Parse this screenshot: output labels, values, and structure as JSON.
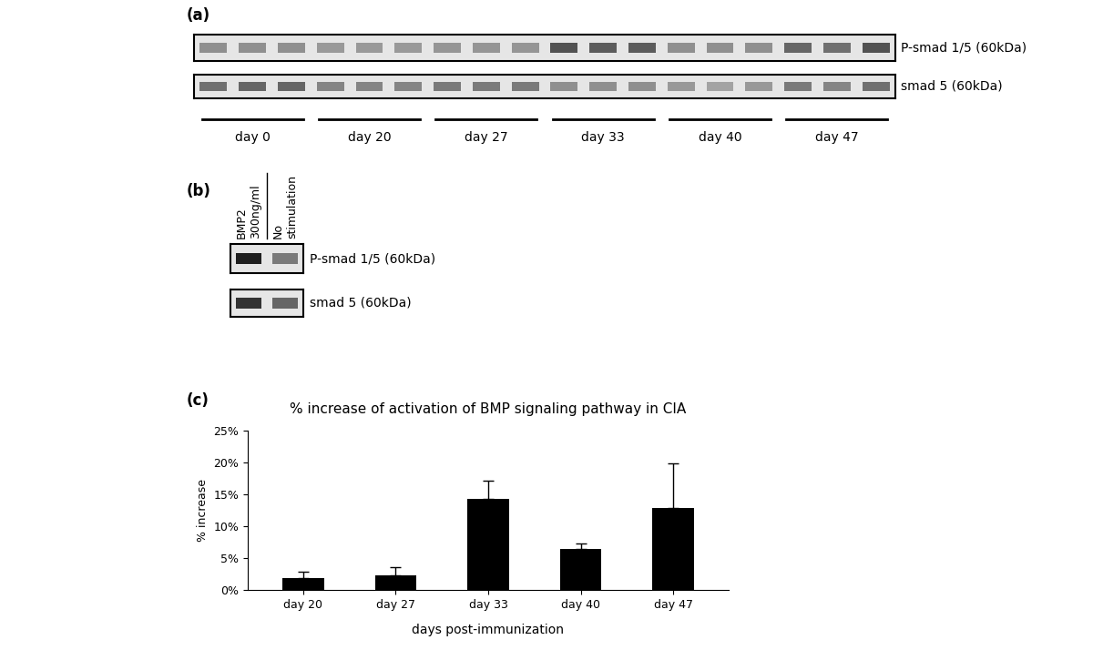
{
  "panel_labels": [
    "(a)",
    "(b)",
    "(c)"
  ],
  "blots": {
    "a": {
      "groups": [
        "day 0",
        "day 20",
        "day 27",
        "day 33",
        "day 40",
        "day 47"
      ],
      "rows": [
        {
          "name": "P-smad 1/5 (60kDa)",
          "intensity": [
            0.45,
            0.45,
            0.45,
            0.4,
            0.4,
            0.4,
            0.42,
            0.42,
            0.42,
            0.75,
            0.7,
            0.7,
            0.45,
            0.45,
            0.45,
            0.65,
            0.6,
            0.75
          ]
        },
        {
          "name": "smad 5 (60kDa)",
          "intensity": [
            0.6,
            0.65,
            0.65,
            0.5,
            0.5,
            0.5,
            0.55,
            0.55,
            0.55,
            0.45,
            0.45,
            0.45,
            0.4,
            0.35,
            0.4,
            0.55,
            0.5,
            0.6
          ]
        }
      ]
    },
    "b": {
      "lanes": [
        "BMP2\n300ng/ml",
        "No\nstimulation"
      ],
      "rows": [
        {
          "name": "P-smad 1/5 (60kDa)",
          "intensity": [
            1.0,
            0.55
          ]
        },
        {
          "name": "smad 5 (60kDa)",
          "intensity": [
            0.9,
            0.65
          ]
        }
      ]
    }
  },
  "chart_data": {
    "type": "bar",
    "title": "% increase of activation of BMP signaling pathway in CIA",
    "x_label": "days post-immunization",
    "y_label": "% increase",
    "categories": [
      "day 20",
      "day 27",
      "day 33",
      "day 40",
      "day 47"
    ],
    "values": [
      1.8,
      2.3,
      14.3,
      6.4,
      12.8
    ],
    "error": [
      1.0,
      1.3,
      2.9,
      0.9,
      7.0
    ],
    "color": "#000000",
    "ylim": [
      0,
      25
    ],
    "yticks": [
      {
        "value": 0,
        "label": "0%"
      },
      {
        "value": 5,
        "label": "5%"
      },
      {
        "value": 10,
        "label": "10%"
      },
      {
        "value": 15,
        "label": "15%"
      },
      {
        "value": 20,
        "label": "20%"
      },
      {
        "value": 25,
        "label": "25%"
      }
    ],
    "grid": false
  }
}
